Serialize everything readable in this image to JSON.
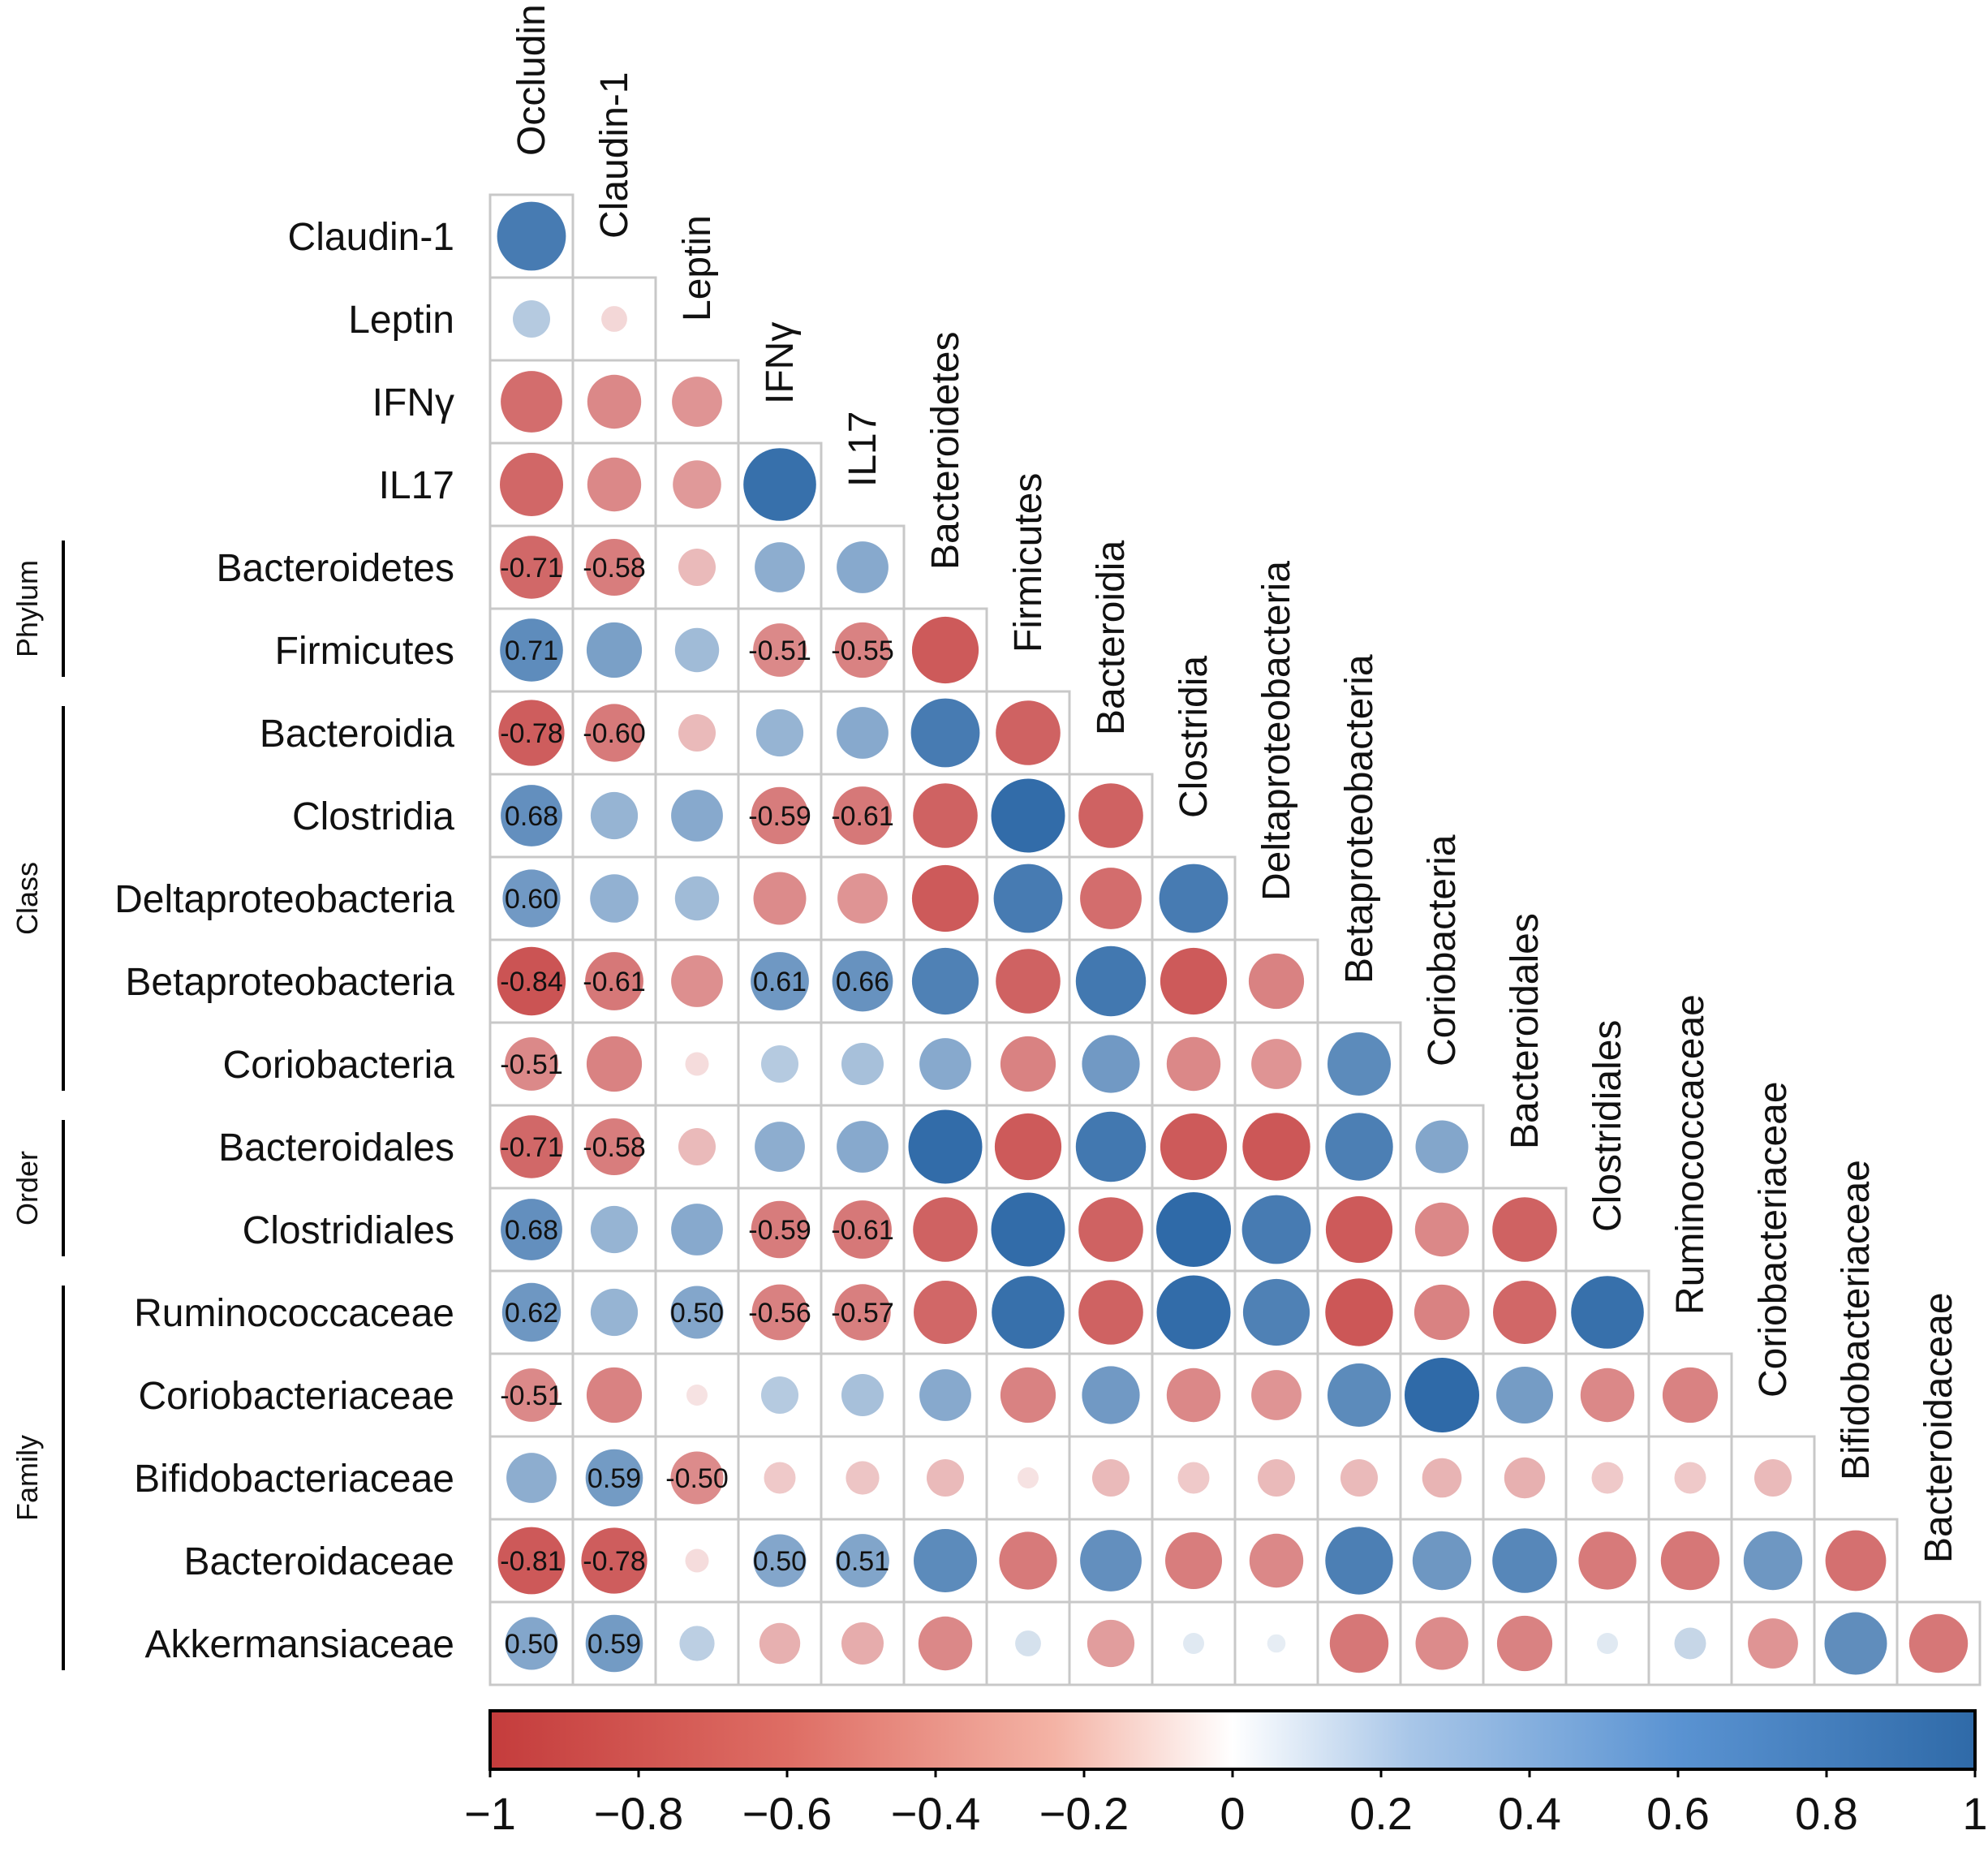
{
  "chart_data": {
    "type": "heatmap",
    "subtype": "correlation-circle-lower-triangle",
    "variables": [
      "Occludin",
      "Claudin-1",
      "Leptin",
      "IFNγ",
      "IL17",
      "Bacteroidetes",
      "Firmicutes",
      "Bacteroidia",
      "Clostridia",
      "Deltaproteobacteria",
      "Betaproteobacteria",
      "Coriobacteria",
      "Bacteroidales",
      "Clostridiales",
      "Ruminococcaceae",
      "Coriobacteriaceae",
      "Bifidobacteriaceae",
      "Bacteroidaceae",
      "Akkermansiaceae"
    ],
    "row_labels": [
      "Claudin-1",
      "Leptin",
      "IFNγ",
      "IL17",
      "Bacteroidetes",
      "Firmicutes",
      "Bacteroidia",
      "Clostridia",
      "Deltaproteobacteria",
      "Betaproteobacteria",
      "Coriobacteria",
      "Bacteroidales",
      "Clostridiales",
      "Ruminococcaceae",
      "Coriobacteriaceae",
      "Bifidobacteriaceae",
      "Bacteroidaceae",
      "Akkermansiaceae"
    ],
    "column_labels": [
      "Occludin",
      "Claudin-1",
      "Leptin",
      "IFNγ",
      "IL17",
      "Bacteroidetes",
      "Firmicutes",
      "Bacteroidia",
      "Clostridia",
      "Deltaproteobacteria",
      "Betaproteobacteria",
      "Coriobacteria",
      "Bacteroidales",
      "Clostridiales",
      "Ruminococcaceae",
      "Coriobacteriaceae",
      "Bifidobacteriaceae",
      "Bacteroidaceae"
    ],
    "groups": [
      {
        "label": "Phylum",
        "rows": [
          "Bacteroidetes",
          "Firmicutes"
        ]
      },
      {
        "label": "Class",
        "rows": [
          "Bacteroidia",
          "Clostridia",
          "Deltaproteobacteria",
          "Betaproteobacteria",
          "Coriobacteria"
        ]
      },
      {
        "label": "Order",
        "rows": [
          "Bacteroidales",
          "Clostridiales"
        ]
      },
      {
        "label": "Family",
        "rows": [
          "Ruminococcaceae",
          "Coriobacteriaceae",
          "Bifidobacteriaceae",
          "Bacteroidaceae",
          "Akkermansiaceae"
        ]
      }
    ],
    "matrix": [
      [
        0.85
      ],
      [
        0.25,
        -0.12
      ],
      [
        -0.68,
        -0.52,
        -0.45
      ],
      [
        -0.72,
        -0.52,
        -0.42,
        0.95
      ],
      [
        -0.71,
        -0.58,
        -0.25,
        0.45,
        0.48
      ],
      [
        0.71,
        0.55,
        0.35,
        -0.51,
        -0.55,
        -0.8
      ],
      [
        -0.78,
        -0.6,
        -0.25,
        0.4,
        0.48,
        0.85,
        -0.75
      ],
      [
        0.68,
        0.4,
        0.48,
        -0.59,
        -0.61,
        -0.75,
        0.98,
        -0.75
      ],
      [
        0.6,
        0.42,
        0.35,
        -0.5,
        -0.45,
        -0.8,
        0.85,
        -0.68,
        0.85
      ],
      [
        -0.84,
        -0.61,
        -0.48,
        0.61,
        0.66,
        0.8,
        -0.75,
        0.88,
        -0.8,
        -0.55
      ],
      [
        -0.51,
        -0.55,
        -0.1,
        0.25,
        0.32,
        0.48,
        -0.55,
        0.6,
        -0.52,
        -0.45,
        0.72
      ],
      [
        -0.71,
        -0.58,
        -0.25,
        0.45,
        0.48,
        0.98,
        -0.8,
        0.88,
        -0.8,
        -0.82,
        0.82,
        0.5
      ],
      [
        0.68,
        0.4,
        0.48,
        -0.59,
        -0.61,
        -0.75,
        0.98,
        -0.75,
        1.0,
        0.85,
        -0.8,
        -0.52,
        -0.75
      ],
      [
        0.62,
        0.4,
        0.5,
        -0.56,
        -0.57,
        -0.72,
        0.95,
        -0.75,
        0.98,
        0.8,
        -0.82,
        -0.55,
        -0.72,
        0.95
      ],
      [
        -0.51,
        -0.55,
        -0.08,
        0.25,
        0.32,
        0.48,
        -0.55,
        0.6,
        -0.52,
        -0.45,
        0.72,
        1.0,
        0.58,
        -0.52,
        -0.55
      ],
      [
        0.45,
        0.59,
        -0.5,
        -0.18,
        -0.2,
        -0.25,
        -0.08,
        -0.25,
        -0.18,
        -0.25,
        -0.25,
        -0.28,
        -0.3,
        -0.18,
        -0.18,
        -0.25
      ],
      [
        -0.81,
        -0.78,
        -0.1,
        0.5,
        0.51,
        0.72,
        -0.6,
        0.68,
        -0.58,
        -0.52,
        0.82,
        0.62,
        0.75,
        -0.6,
        -0.62,
        0.62,
        -0.66
      ],
      [
        0.5,
        0.59,
        0.22,
        -0.3,
        -0.32,
        -0.52,
        0.12,
        -0.4,
        0.08,
        0.06,
        -0.62,
        -0.5,
        -0.55,
        0.08,
        0.18,
        -0.45,
        0.7,
        -0.62
      ]
    ],
    "printed_values": [
      {
        "row": "Bacteroidetes",
        "column": "Occludin",
        "value": -0.71
      },
      {
        "row": "Bacteroidetes",
        "column": "Claudin-1",
        "value": -0.58
      },
      {
        "row": "Firmicutes",
        "column": "Occludin",
        "value": 0.71
      },
      {
        "row": "Firmicutes",
        "column": "IFNγ",
        "value": -0.51
      },
      {
        "row": "Firmicutes",
        "column": "IL17",
        "value": -0.55
      },
      {
        "row": "Bacteroidia",
        "column": "Occludin",
        "value": -0.78
      },
      {
        "row": "Bacteroidia",
        "column": "Claudin-1",
        "value": -0.6
      },
      {
        "row": "Clostridia",
        "column": "Occludin",
        "value": 0.68
      },
      {
        "row": "Clostridia",
        "column": "IFNγ",
        "value": -0.59
      },
      {
        "row": "Clostridia",
        "column": "IL17",
        "value": -0.61
      },
      {
        "row": "Deltaproteobacteria",
        "column": "Occludin",
        "value": 0.6
      },
      {
        "row": "Betaproteobacteria",
        "column": "Occludin",
        "value": -0.84
      },
      {
        "row": "Betaproteobacteria",
        "column": "Claudin-1",
        "value": -0.61
      },
      {
        "row": "Betaproteobacteria",
        "column": "IFNγ",
        "value": 0.61
      },
      {
        "row": "Betaproteobacteria",
        "column": "IL17",
        "value": 0.66
      },
      {
        "row": "Coriobacteria",
        "column": "Occludin",
        "value": -0.51
      },
      {
        "row": "Bacteroidales",
        "column": "Occludin",
        "value": -0.71
      },
      {
        "row": "Bacteroidales",
        "column": "Claudin-1",
        "value": -0.58
      },
      {
        "row": "Clostridiales",
        "column": "Occludin",
        "value": 0.68
      },
      {
        "row": "Clostridiales",
        "column": "IFNγ",
        "value": -0.59
      },
      {
        "row": "Clostridiales",
        "column": "IL17",
        "value": -0.61
      },
      {
        "row": "Ruminococcaceae",
        "column": "Occludin",
        "value": 0.62
      },
      {
        "row": "Ruminococcaceae",
        "column": "Leptin",
        "value": 0.5
      },
      {
        "row": "Ruminococcaceae",
        "column": "IFNγ",
        "value": -0.56
      },
      {
        "row": "Ruminococcaceae",
        "column": "IL17",
        "value": -0.57
      },
      {
        "row": "Coriobacteriaceae",
        "column": "Occludin",
        "value": -0.51
      },
      {
        "row": "Bifidobacteriaceae",
        "column": "Claudin-1",
        "value": 0.59
      },
      {
        "row": "Bifidobacteriaceae",
        "column": "Leptin",
        "value": -0.5
      },
      {
        "row": "Bacteroidaceae",
        "column": "Occludin",
        "value": -0.81
      },
      {
        "row": "Bacteroidaceae",
        "column": "Claudin-1",
        "value": -0.78
      },
      {
        "row": "Bacteroidaceae",
        "column": "IFNγ",
        "value": 0.5
      },
      {
        "row": "Bacteroidaceae",
        "column": "IL17",
        "value": 0.51
      },
      {
        "row": "Akkermansiaceae",
        "column": "Occludin",
        "value": 0.5
      },
      {
        "row": "Akkermansiaceae",
        "column": "Claudin-1",
        "value": 0.59
      }
    ],
    "colorbar": {
      "range": [
        -1,
        1
      ],
      "ticks": [
        -1,
        -0.8,
        -0.6,
        -0.4,
        -0.2,
        0,
        0.2,
        0.4,
        0.6,
        0.8,
        1
      ],
      "tick_labels": [
        "−1",
        "−0.8",
        "−0.6",
        "−0.4",
        "−0.2",
        "0",
        "0.2",
        "0.4",
        "0.6",
        "0.8",
        "1"
      ],
      "colors": {
        "negative": "#c43c3c",
        "zero": "#ffffff",
        "positive": "#2f6aa8"
      }
    }
  }
}
